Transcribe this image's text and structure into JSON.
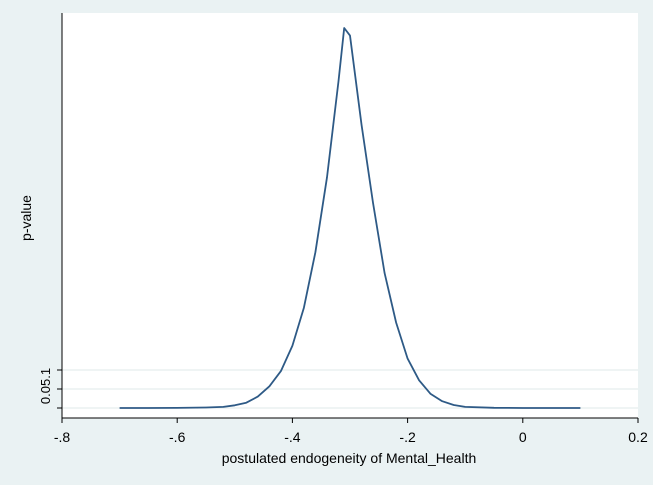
{
  "chart_data": {
    "type": "line",
    "title": "",
    "xlabel": "postulated endogeneity of Mental_Health",
    "ylabel": "p-value",
    "xlim": [
      -0.8,
      0.2
    ],
    "ylim": [
      0,
      1
    ],
    "grid": true,
    "x_ticks": [
      {
        "value": -0.8,
        "label": "-.8"
      },
      {
        "value": -0.6,
        "label": "-.6"
      },
      {
        "value": -0.4,
        "label": "-.4"
      },
      {
        "value": -0.2,
        "label": "-.2"
      },
      {
        "value": 0.0,
        "label": "0"
      },
      {
        "value": 0.2,
        "label": "0.2"
      }
    ],
    "y_ticks": [
      {
        "value": 0.0,
        "label": "0"
      },
      {
        "value": 0.05,
        "label": ".05"
      },
      {
        "value": 0.1,
        "label": ".1"
      }
    ],
    "series": [
      {
        "name": "",
        "color": "#2e5a86",
        "points": [
          [
            -0.7,
            0.0
          ],
          [
            -0.65,
            0.0
          ],
          [
            -0.6,
            0.0003
          ],
          [
            -0.55,
            0.0012
          ],
          [
            -0.52,
            0.003
          ],
          [
            -0.5,
            0.007
          ],
          [
            -0.48,
            0.014
          ],
          [
            -0.46,
            0.03
          ],
          [
            -0.44,
            0.057
          ],
          [
            -0.42,
            0.097
          ],
          [
            -0.4,
            0.164
          ],
          [
            -0.38,
            0.264
          ],
          [
            -0.36,
            0.41
          ],
          [
            -0.34,
            0.607
          ],
          [
            -0.32,
            0.86
          ],
          [
            -0.31,
            1.0
          ],
          [
            -0.3,
            0.98
          ],
          [
            -0.28,
            0.746
          ],
          [
            -0.26,
            0.54
          ],
          [
            -0.24,
            0.355
          ],
          [
            -0.22,
            0.225
          ],
          [
            -0.2,
            0.13
          ],
          [
            -0.18,
            0.073
          ],
          [
            -0.16,
            0.037
          ],
          [
            -0.14,
            0.018
          ],
          [
            -0.12,
            0.008
          ],
          [
            -0.1,
            0.003
          ],
          [
            -0.05,
            0.0005
          ],
          [
            0.0,
            0.0
          ],
          [
            0.05,
            0.0
          ],
          [
            0.1,
            0.0
          ]
        ]
      }
    ]
  }
}
